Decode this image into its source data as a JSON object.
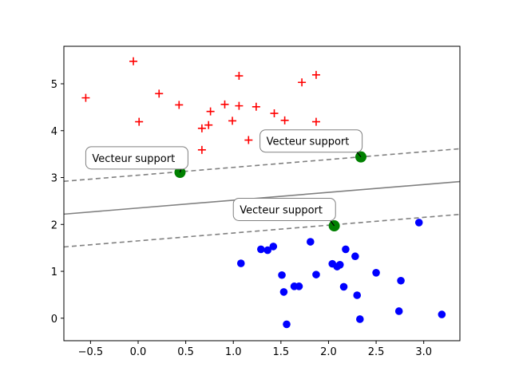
{
  "chart_data": {
    "type": "scatter",
    "xlim": [
      -0.78,
      3.38
    ],
    "ylim": [
      -0.48,
      5.8
    ],
    "xticks": [
      -0.5,
      0.0,
      0.5,
      1.0,
      1.5,
      2.0,
      2.5,
      3.0
    ],
    "xtick_labels": [
      "−0.5",
      "0.0",
      "0.5",
      "1.0",
      "1.5",
      "2.0",
      "2.5",
      "3.0"
    ],
    "yticks": [
      0,
      1,
      2,
      3,
      4,
      5
    ],
    "ytick_labels": [
      "0",
      "1",
      "2",
      "3",
      "4",
      "5"
    ],
    "grid": false,
    "colors": {
      "class_plus": "#ff0000",
      "class_dot": "#0000ff",
      "support_vector": "#008000",
      "boundary": "#808080"
    },
    "series": [
      {
        "marker": "plus",
        "points": [
          [
            -0.55,
            4.7
          ],
          [
            -0.05,
            5.48
          ],
          [
            0.01,
            4.19
          ],
          [
            0.22,
            4.79
          ],
          [
            0.43,
            4.55
          ],
          [
            0.34,
            3.45
          ],
          [
            0.67,
            4.05
          ],
          [
            0.67,
            3.59
          ],
          [
            0.74,
            4.12
          ],
          [
            0.76,
            4.41
          ],
          [
            0.91,
            4.56
          ],
          [
            0.99,
            4.21
          ],
          [
            1.06,
            5.17
          ],
          [
            1.06,
            4.53
          ],
          [
            1.16,
            3.8
          ],
          [
            1.24,
            4.51
          ],
          [
            1.43,
            4.37
          ],
          [
            1.48,
            3.86
          ],
          [
            1.54,
            4.22
          ],
          [
            1.72,
            5.03
          ],
          [
            1.87,
            5.19
          ],
          [
            1.87,
            4.19
          ],
          [
            2.1,
            3.76
          ]
        ]
      },
      {
        "marker": "dot",
        "points": [
          [
            1.08,
            1.17
          ],
          [
            1.29,
            1.47
          ],
          [
            1.36,
            1.45
          ],
          [
            1.42,
            1.53
          ],
          [
            1.51,
            0.92
          ],
          [
            1.53,
            0.56
          ],
          [
            1.56,
            -0.13
          ],
          [
            1.64,
            0.68
          ],
          [
            1.69,
            0.68
          ],
          [
            1.81,
            1.63
          ],
          [
            1.87,
            0.93
          ],
          [
            2.04,
            1.16
          ],
          [
            2.09,
            1.1
          ],
          [
            2.12,
            1.14
          ],
          [
            2.16,
            0.67
          ],
          [
            2.18,
            1.47
          ],
          [
            2.28,
            1.32
          ],
          [
            2.3,
            0.49
          ],
          [
            2.33,
            -0.02
          ],
          [
            2.5,
            0.97
          ],
          [
            2.76,
            0.8
          ],
          [
            2.74,
            0.15
          ],
          [
            2.95,
            2.04
          ],
          [
            3.19,
            0.08
          ]
        ]
      }
    ],
    "support_vectors": [
      [
        0.44,
        3.11
      ],
      [
        2.34,
        3.44
      ],
      [
        2.06,
        1.97
      ]
    ],
    "decision_boundary": {
      "slope": 0.167,
      "intercept": 2.35,
      "margin": 0.7
    },
    "annotations": [
      {
        "text": "Vecteur support",
        "x": -0.55,
        "y": 3.42,
        "target": [
          0.44,
          3.11
        ]
      },
      {
        "text": "Vecteur support",
        "x": 1.28,
        "y": 3.78,
        "target": [
          2.34,
          3.44
        ]
      },
      {
        "text": "Vecteur support",
        "x": 1.0,
        "y": 2.32,
        "target": [
          2.06,
          1.97
        ]
      }
    ]
  }
}
